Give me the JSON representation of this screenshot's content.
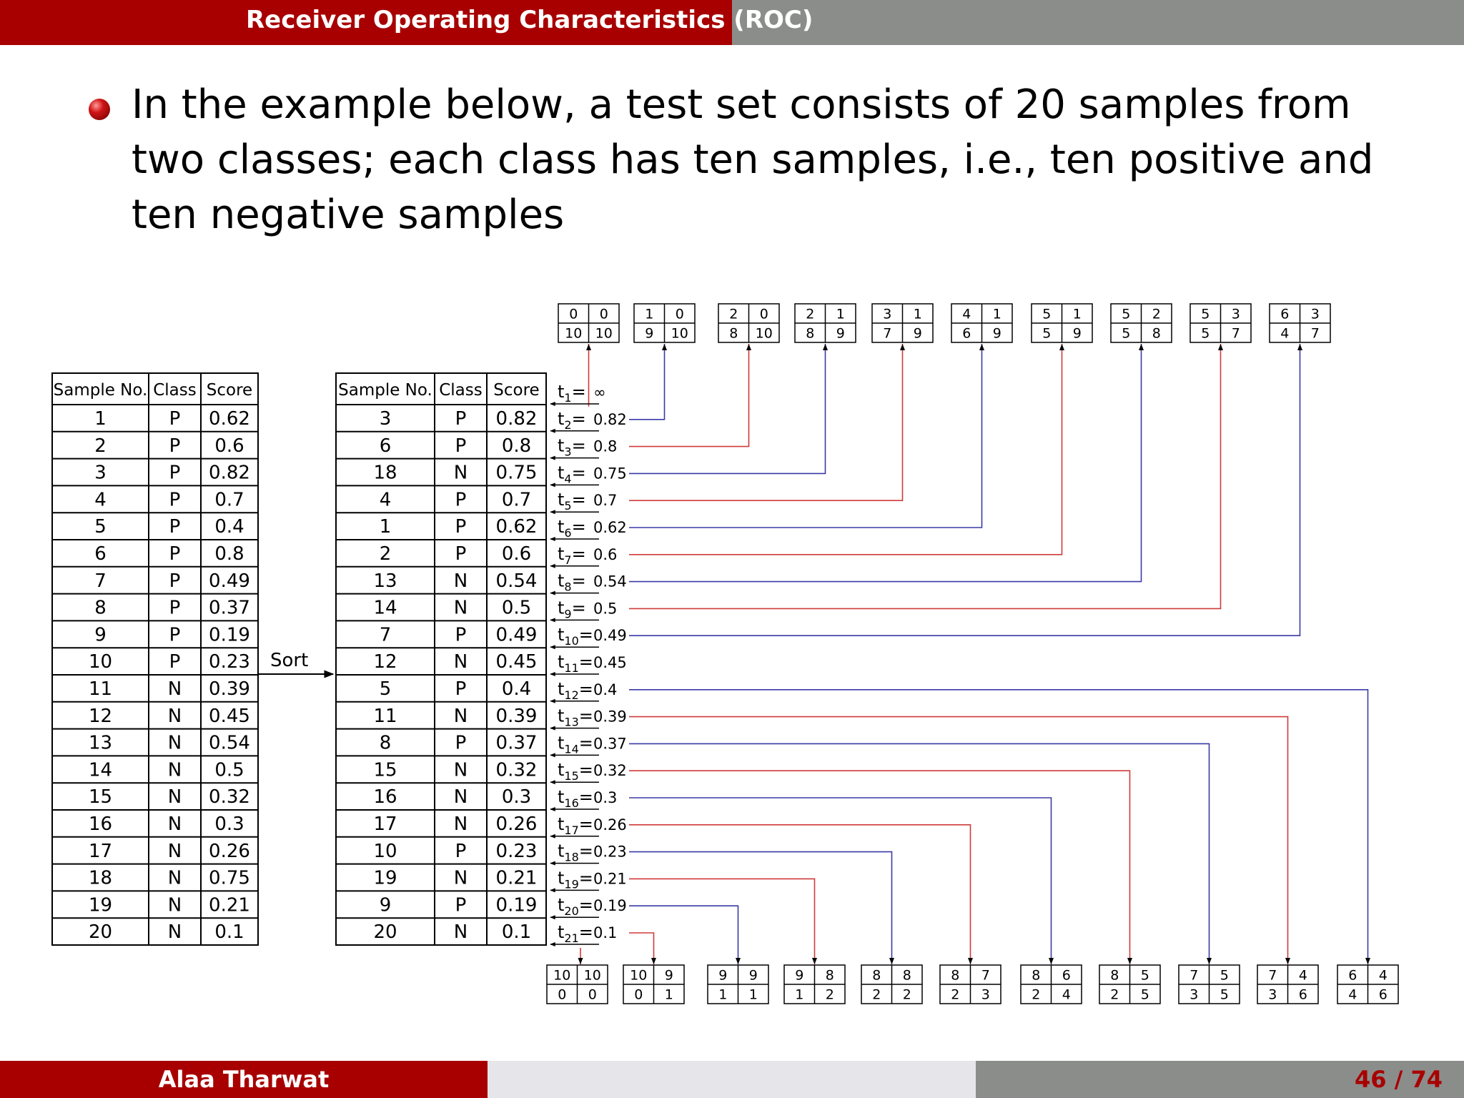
{
  "header": {
    "title": "Receiver Operating Characteristics (ROC)"
  },
  "bullet_text": "In the example below, a test set consists of 20 samples from two classes; each class has ten samples, i.e., ten positive and ten negative samples",
  "footer": {
    "author": "Alaa Tharwat",
    "page": "46 / 74"
  },
  "table_headers": [
    "Sample No.",
    "Class",
    "Score"
  ],
  "original_table": [
    [
      "1",
      "P",
      "0.62"
    ],
    [
      "2",
      "P",
      "0.6"
    ],
    [
      "3",
      "P",
      "0.82"
    ],
    [
      "4",
      "P",
      "0.7"
    ],
    [
      "5",
      "P",
      "0.4"
    ],
    [
      "6",
      "P",
      "0.8"
    ],
    [
      "7",
      "P",
      "0.49"
    ],
    [
      "8",
      "P",
      "0.37"
    ],
    [
      "9",
      "P",
      "0.19"
    ],
    [
      "10",
      "P",
      "0.23"
    ],
    [
      "11",
      "N",
      "0.39"
    ],
    [
      "12",
      "N",
      "0.45"
    ],
    [
      "13",
      "N",
      "0.54"
    ],
    [
      "14",
      "N",
      "0.5"
    ],
    [
      "15",
      "N",
      "0.32"
    ],
    [
      "16",
      "N",
      "0.3"
    ],
    [
      "17",
      "N",
      "0.26"
    ],
    [
      "18",
      "N",
      "0.75"
    ],
    [
      "19",
      "N",
      "0.21"
    ],
    [
      "20",
      "N",
      "0.1"
    ]
  ],
  "sorted_table": [
    [
      "3",
      "P",
      "0.82"
    ],
    [
      "6",
      "P",
      "0.8"
    ],
    [
      "18",
      "N",
      "0.75"
    ],
    [
      "4",
      "P",
      "0.7"
    ],
    [
      "1",
      "P",
      "0.62"
    ],
    [
      "2",
      "P",
      "0.6"
    ],
    [
      "13",
      "N",
      "0.54"
    ],
    [
      "14",
      "N",
      "0.5"
    ],
    [
      "7",
      "P",
      "0.49"
    ],
    [
      "12",
      "N",
      "0.45"
    ],
    [
      "5",
      "P",
      "0.4"
    ],
    [
      "11",
      "N",
      "0.39"
    ],
    [
      "8",
      "P",
      "0.37"
    ],
    [
      "15",
      "N",
      "0.32"
    ],
    [
      "16",
      "N",
      "0.3"
    ],
    [
      "17",
      "N",
      "0.26"
    ],
    [
      "10",
      "P",
      "0.23"
    ],
    [
      "19",
      "N",
      "0.21"
    ],
    [
      "9",
      "P",
      "0.19"
    ],
    [
      "20",
      "N",
      "0.1"
    ]
  ],
  "sort_label": "Sort",
  "thresholds": [
    {
      "sub": "1",
      "value": "∞"
    },
    {
      "sub": "2",
      "value": "0.82"
    },
    {
      "sub": "3",
      "value": "0.8"
    },
    {
      "sub": "4",
      "value": "0.75"
    },
    {
      "sub": "5",
      "value": "0.7"
    },
    {
      "sub": "6",
      "value": "0.62"
    },
    {
      "sub": "7",
      "value": "0.6"
    },
    {
      "sub": "8",
      "value": "0.54"
    },
    {
      "sub": "9",
      "value": "0.5"
    },
    {
      "sub": "10",
      "value": "0.49"
    },
    {
      "sub": "11",
      "value": "0.45"
    },
    {
      "sub": "12",
      "value": "0.4"
    },
    {
      "sub": "13",
      "value": "0.39"
    },
    {
      "sub": "14",
      "value": "0.37"
    },
    {
      "sub": "15",
      "value": "0.32"
    },
    {
      "sub": "16",
      "value": "0.3"
    },
    {
      "sub": "17",
      "value": "0.26"
    },
    {
      "sub": "18",
      "value": "0.23"
    },
    {
      "sub": "19",
      "value": "0.21"
    },
    {
      "sub": "20",
      "value": "0.19"
    },
    {
      "sub": "21",
      "value": "0.1"
    }
  ],
  "top_matrices": [
    [
      "0",
      "0",
      "10",
      "10"
    ],
    [
      "1",
      "0",
      "9",
      "10"
    ],
    [
      "2",
      "0",
      "8",
      "10"
    ],
    [
      "2",
      "1",
      "8",
      "9"
    ],
    [
      "3",
      "1",
      "7",
      "9"
    ],
    [
      "4",
      "1",
      "6",
      "9"
    ],
    [
      "5",
      "1",
      "5",
      "9"
    ],
    [
      "5",
      "2",
      "5",
      "8"
    ],
    [
      "5",
      "3",
      "5",
      "7"
    ],
    [
      "6",
      "3",
      "4",
      "7"
    ]
  ],
  "bottom_matrices": [
    [
      "10",
      "10",
      "0",
      "0"
    ],
    [
      "10",
      "9",
      "0",
      "1"
    ],
    [
      "9",
      "9",
      "1",
      "1"
    ],
    [
      "9",
      "8",
      "1",
      "2"
    ],
    [
      "8",
      "8",
      "2",
      "2"
    ],
    [
      "8",
      "7",
      "2",
      "3"
    ],
    [
      "8",
      "6",
      "2",
      "4"
    ],
    [
      "8",
      "5",
      "2",
      "5"
    ],
    [
      "7",
      "5",
      "3",
      "5"
    ],
    [
      "7",
      "4",
      "3",
      "6"
    ],
    [
      "6",
      "4",
      "4",
      "6"
    ]
  ],
  "colors": {
    "red_connector": "#d03a3a",
    "blue_connector": "#3a3aa8",
    "brand_red": "#a80000",
    "gray_bar": "#8b8d8b"
  }
}
